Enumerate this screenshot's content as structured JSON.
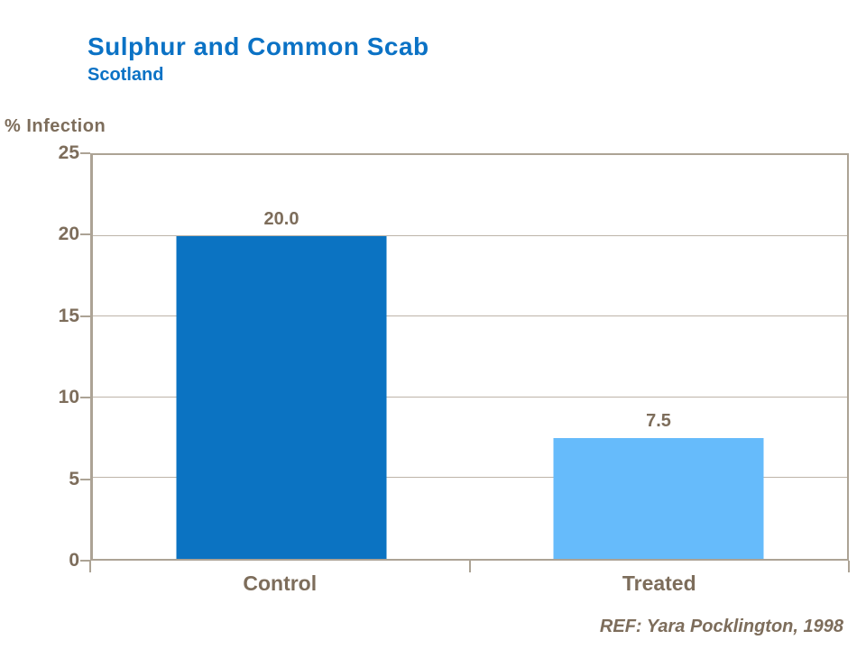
{
  "header": {
    "title": "Sulphur and Common Scab",
    "subtitle": "Scotland"
  },
  "footer": {
    "ref_text": "REF: Yara Pocklington, 1998"
  },
  "colors": {
    "title_blue": "#0B72C5",
    "text_brown": "#7D6D5B",
    "axis_taupe": "#ACA395",
    "gridline_taupe": "#BDB4A9",
    "bar_control_blue": "#0B73C2",
    "bar_treated_blue": "#66BBFB",
    "background": "#FFFFFF"
  },
  "chart_data": {
    "type": "bar",
    "title": "Sulphur and Common Scab",
    "subtitle": "Scotland",
    "ylabel": "% Infection",
    "xlabel": "",
    "categories": [
      "Control",
      "Treated"
    ],
    "values": [
      20.0,
      7.5
    ],
    "value_labels": [
      "20.0",
      "7.5"
    ],
    "bar_colors": [
      "#0B73C2",
      "#66BBFB"
    ],
    "ylim": [
      0,
      25
    ],
    "yticks": [
      0,
      5,
      10,
      15,
      20,
      25
    ],
    "grid": true,
    "legend": false,
    "annotation": "REF: Yara Pocklington, 1998"
  }
}
